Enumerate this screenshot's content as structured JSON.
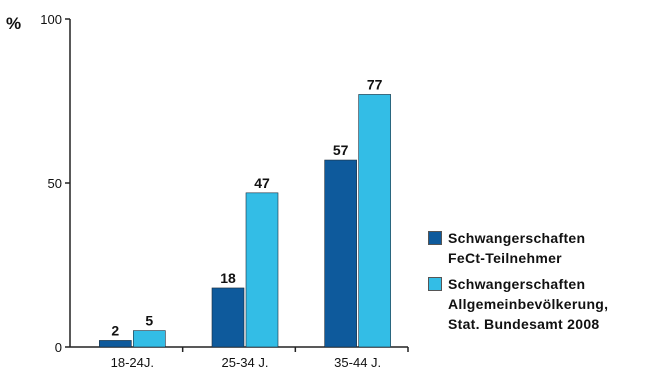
{
  "chart_data": {
    "type": "bar",
    "ylabel": "%",
    "ylim": [
      0,
      100
    ],
    "yticks": [
      0,
      50,
      100
    ],
    "grid": false,
    "legend_position": "right",
    "categories": [
      "18-24J.",
      "25-34 J.",
      "35-44 J."
    ],
    "series": [
      {
        "name": "Schwangerschaften\nFeCt-Teilnehmer",
        "color": "#0e5a9c",
        "values": [
          2,
          18,
          57
        ]
      },
      {
        "name": "Schwangerschaften\nAllgemeinbevölkerung,\nStat. Bundesamt 2008",
        "color": "#33bde6",
        "values": [
          5,
          47,
          77
        ]
      }
    ]
  }
}
